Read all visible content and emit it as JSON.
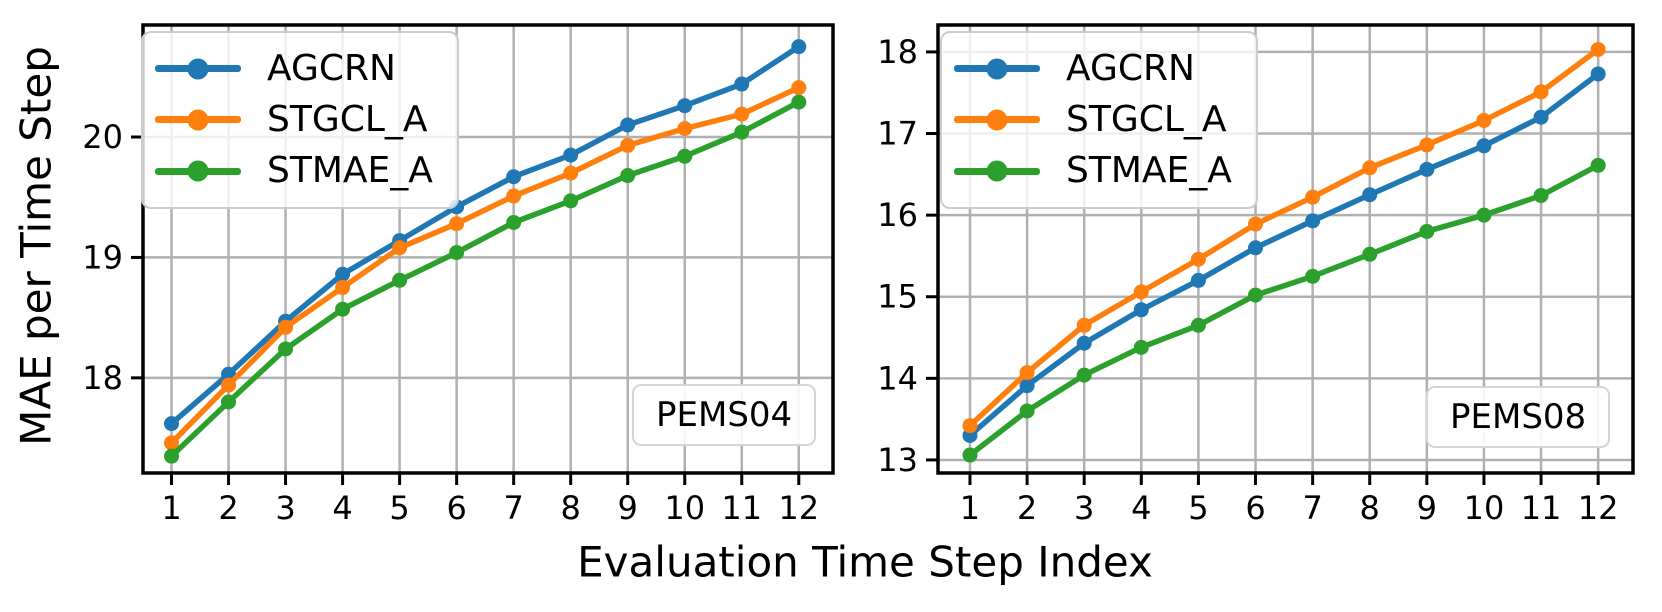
{
  "figure": {
    "xlabel": "Evaluation Time Step Index",
    "ylabel": "MAE per Time Step",
    "background": "#ffffff",
    "grid_color": "#b0b0b0",
    "frame_color": "#000000"
  },
  "chart_data": [
    {
      "type": "line",
      "dataset_label": "PEMS04",
      "xlabel_shared": "Evaluation Time Step Index",
      "ylabel": "MAE per Time Step",
      "x": [
        1,
        2,
        3,
        4,
        5,
        6,
        7,
        8,
        9,
        10,
        11,
        12
      ],
      "xticks": [
        1,
        2,
        3,
        4,
        5,
        6,
        7,
        8,
        9,
        10,
        11,
        12
      ],
      "yticks": [
        18,
        19,
        20
      ],
      "xlim": [
        0.5,
        12.6
      ],
      "ylim": [
        17.21,
        20.93
      ],
      "grid": true,
      "legend_position": "upper left",
      "series": [
        {
          "name": "AGCRN",
          "color": "#1f77b4",
          "values": [
            17.62,
            18.03,
            18.47,
            18.86,
            19.14,
            19.42,
            19.67,
            19.85,
            20.1,
            20.26,
            20.44,
            20.75
          ]
        },
        {
          "name": "STGCL_A",
          "color": "#ff7f0e",
          "values": [
            17.46,
            17.94,
            18.42,
            18.75,
            19.08,
            19.28,
            19.51,
            19.7,
            19.93,
            20.07,
            20.19,
            20.41
          ]
        },
        {
          "name": "STMAE_A",
          "color": "#2ca02c",
          "values": [
            17.35,
            17.8,
            18.24,
            18.57,
            18.81,
            19.04,
            19.29,
            19.47,
            19.68,
            19.84,
            20.04,
            20.29
          ]
        }
      ]
    },
    {
      "type": "line",
      "dataset_label": "PEMS08",
      "x": [
        1,
        2,
        3,
        4,
        5,
        6,
        7,
        8,
        9,
        10,
        11,
        12
      ],
      "xticks": [
        1,
        2,
        3,
        4,
        5,
        6,
        7,
        8,
        9,
        10,
        11,
        12
      ],
      "yticks": [
        13,
        14,
        15,
        16,
        17,
        18
      ],
      "xlim": [
        0.44,
        12.61
      ],
      "ylim": [
        12.84,
        18.33
      ],
      "grid": true,
      "legend_position": "upper left",
      "series": [
        {
          "name": "AGCRN",
          "color": "#1f77b4",
          "values": [
            13.3,
            13.91,
            14.43,
            14.84,
            15.2,
            15.6,
            15.93,
            16.25,
            16.56,
            16.85,
            17.2,
            17.73
          ]
        },
        {
          "name": "STGCL_A",
          "color": "#ff7f0e",
          "values": [
            13.42,
            14.07,
            14.65,
            15.06,
            15.46,
            15.89,
            16.22,
            16.58,
            16.86,
            17.16,
            17.51,
            18.03
          ]
        },
        {
          "name": "STMAE_A",
          "color": "#2ca02c",
          "values": [
            13.06,
            13.6,
            14.04,
            14.38,
            14.65,
            15.02,
            15.25,
            15.52,
            15.8,
            16.0,
            16.24,
            16.61
          ]
        }
      ]
    }
  ]
}
